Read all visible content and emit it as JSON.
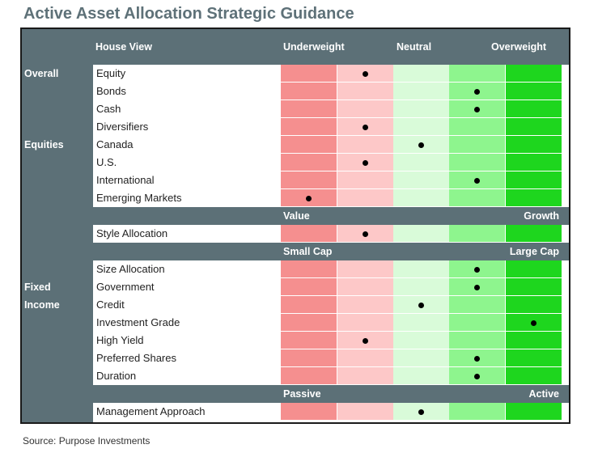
{
  "title": "Active Asset Allocation Strategic Guidance",
  "source": "Source: Purpose Investments",
  "colors": {
    "header": "#5c7077",
    "scale": [
      "#f58f8f",
      "#fdc8c8",
      "#d9fbd9",
      "#8ef58e",
      "#1ed61e"
    ]
  },
  "chart_data": {
    "type": "table",
    "title": "Active Asset Allocation Strategic Guidance",
    "header": {
      "house_view": "House View",
      "underweight": "Underweight",
      "neutral": "Neutral",
      "overweight": "Overweight"
    },
    "scale_positions": 5,
    "groups": [
      {
        "label": "Overall",
        "rows": [
          {
            "label": "Equity",
            "position": 1
          },
          {
            "label": "Bonds",
            "position": 3
          },
          {
            "label": "Cash",
            "position": 3
          },
          {
            "label": "Diversifiers",
            "position": 1
          }
        ]
      },
      {
        "label": "Equities",
        "rows": [
          {
            "label": "Canada",
            "position": 2
          },
          {
            "label": "U.S.",
            "position": 1
          },
          {
            "label": "International",
            "position": 3
          },
          {
            "label": "Emerging Markets",
            "position": 0
          },
          {
            "subheader": {
              "left": "Value",
              "right": "Growth"
            }
          },
          {
            "label": "Style Allocation",
            "position": 1
          },
          {
            "subheader": {
              "left": "Small Cap",
              "right": "Large Cap"
            }
          },
          {
            "label": "Size Allocation",
            "position": 3
          }
        ]
      },
      {
        "label": "Fixed\nIncome",
        "rows": [
          {
            "label": "Government",
            "position": 3
          },
          {
            "label": "Credit",
            "position": 2
          },
          {
            "label": "Investment Grade",
            "position": 4
          },
          {
            "label": "High Yield",
            "position": 1
          },
          {
            "label": "Preferred Shares",
            "position": 3
          },
          {
            "label": "Duration",
            "position": 3
          }
        ]
      },
      {
        "label": "",
        "rows": [
          {
            "subheader": {
              "left": "Passive",
              "right": "Active"
            }
          },
          {
            "label": "Management Approach",
            "position": 2
          }
        ]
      }
    ]
  }
}
